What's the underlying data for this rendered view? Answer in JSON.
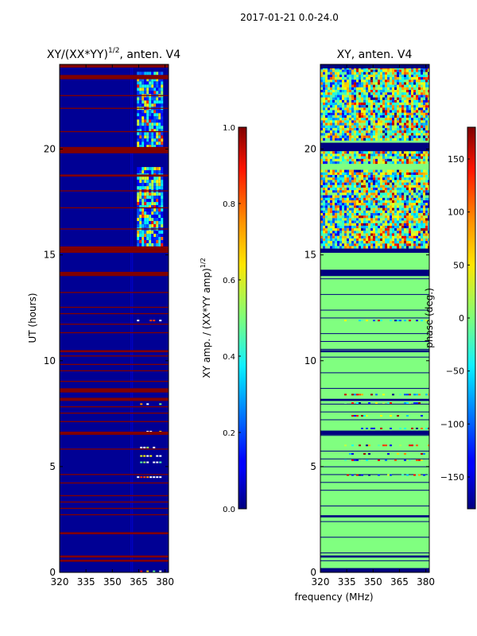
{
  "figure": {
    "suptitle": "2017-01-21 0.0-24.0"
  },
  "chart_data": [
    {
      "type": "heatmap",
      "title_base": "XY/(XX*YY)",
      "title_exp": "1/2",
      "title_suffix": ", anten. V4",
      "xlabel": "",
      "ylabel": "UT (hours)",
      "xlim": [
        320,
        382
      ],
      "ylim": [
        0,
        24
      ],
      "xticks": [
        "320",
        "335",
        "350",
        "365",
        "380"
      ],
      "xtick_values": [
        320,
        335,
        350,
        365,
        380
      ],
      "yticks": [
        "0",
        "5",
        "10",
        "15",
        "20"
      ],
      "ytick_values": [
        0,
        5,
        10,
        15,
        20
      ],
      "background_value": 0.0,
      "saturated_bands_hours": [
        [
          0.5,
          0.6
        ],
        [
          0.7,
          0.8
        ],
        [
          1.8,
          1.9
        ],
        [
          2.7,
          2.75
        ],
        [
          3.0,
          3.05
        ],
        [
          3.3,
          3.35
        ],
        [
          3.6,
          3.65
        ],
        [
          4.2,
          4.25
        ],
        [
          4.6,
          4.65
        ],
        [
          5.8,
          5.85
        ],
        [
          6.5,
          6.65
        ],
        [
          7.1,
          7.15
        ],
        [
          7.5,
          7.55
        ],
        [
          7.8,
          7.85
        ],
        [
          8.1,
          8.25
        ],
        [
          8.5,
          8.7
        ],
        [
          9.0,
          9.05
        ],
        [
          9.5,
          9.55
        ],
        [
          9.8,
          9.85
        ],
        [
          10.2,
          10.25
        ],
        [
          10.4,
          10.5
        ],
        [
          11.3,
          11.35
        ],
        [
          11.7,
          11.75
        ],
        [
          12.2,
          12.25
        ],
        [
          12.5,
          12.55
        ],
        [
          13.2,
          13.25
        ],
        [
          14.0,
          14.2
        ],
        [
          15.1,
          15.4
        ],
        [
          16.2,
          16.25
        ],
        [
          17.2,
          17.25
        ],
        [
          18.0,
          18.05
        ],
        [
          18.7,
          18.8
        ],
        [
          19.8,
          20.1
        ],
        [
          20.8,
          20.85
        ],
        [
          21.9,
          21.95
        ],
        [
          22.5,
          22.55
        ],
        [
          23.3,
          23.5
        ]
      ],
      "active_region_mhz": [
        364,
        378
      ],
      "active_hours": [
        [
          15.4,
          19.0
        ],
        [
          19.9,
          23.6
        ]
      ],
      "colorbar": {
        "label_base": "XY amp. / (XX*YY amp)",
        "label_exp": "1/2",
        "range": [
          0.0,
          1.0
        ],
        "ticks": [
          "0.0",
          "0.2",
          "0.4",
          "0.6",
          "0.8",
          "1.0"
        ],
        "tick_values": [
          0.0,
          0.2,
          0.4,
          0.6,
          0.8,
          1.0
        ],
        "colormap": "jet"
      }
    },
    {
      "type": "heatmap",
      "title": "XY, anten. V4",
      "xlabel": "frequency (MHz)",
      "ylabel": "",
      "xlim": [
        320,
        382
      ],
      "ylim": [
        0,
        24
      ],
      "xticks": [
        "320",
        "335",
        "350",
        "365",
        "380"
      ],
      "xtick_values": [
        320,
        335,
        350,
        365,
        380
      ],
      "yticks": [
        "0",
        "5",
        "10",
        "15",
        "20"
      ],
      "ytick_values": [
        0,
        5,
        10,
        15,
        20
      ],
      "background_value_deg": 0,
      "noisy_hours": [
        [
          15.3,
          19.0
        ],
        [
          19.3,
          20.0
        ],
        [
          20.4,
          23.8
        ]
      ],
      "band_hours": [
        [
          0.0,
          0.2
        ],
        [
          0.7,
          0.8
        ],
        [
          2.6,
          2.7
        ],
        [
          6.5,
          6.7
        ],
        [
          8.1,
          8.2
        ],
        [
          10.4,
          10.5
        ],
        [
          14.0,
          14.3
        ],
        [
          15.1,
          15.3
        ],
        [
          19.9,
          20.3
        ]
      ],
      "colorbar": {
        "label": "phase (deg.)",
        "range": [
          -180,
          180
        ],
        "ticks": [
          "150",
          "100",
          "50",
          "0",
          "−50",
          "−100",
          "−150"
        ],
        "tick_values": [
          150,
          100,
          50,
          0,
          -50,
          -100,
          -150
        ],
        "colormap": "jet"
      }
    }
  ]
}
